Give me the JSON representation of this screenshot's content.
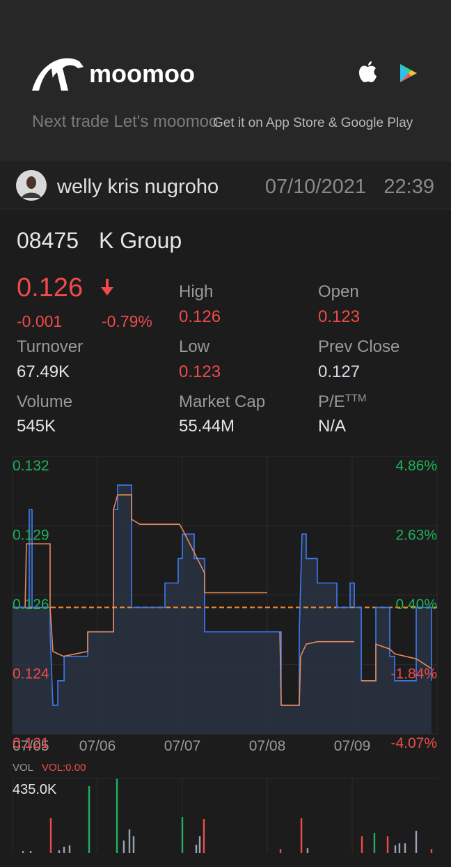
{
  "header": {
    "brand": "moomoo",
    "tagline": "Next trade Let's moomoo",
    "store": "Get it on App Store & Google Play"
  },
  "post": {
    "author": "welly kris nugroho",
    "date": "07/10/2021",
    "time": "22:39"
  },
  "stock": {
    "code": "08475",
    "name": "K Group",
    "price": "0.126",
    "change": "-0.001",
    "change_pct": "-0.79%",
    "columns": [
      [
        {
          "label": "Turnover",
          "value": "67.49K",
          "color": "#e6e6e6"
        },
        {
          "label": "Volume",
          "value": "545K",
          "color": "#e6e6e6"
        }
      ],
      [
        {
          "label": "High",
          "value": "0.126",
          "color": "#ef4b4b"
        },
        {
          "label": "Low",
          "value": "0.123",
          "color": "#ef4b4b"
        },
        {
          "label": "Market Cap",
          "value": "55.44M",
          "color": "#e6e6e6"
        }
      ],
      [
        {
          "label": "Open",
          "value": "0.123",
          "color": "#ef4b4b"
        },
        {
          "label": "Prev Close",
          "value": "0.127",
          "color": "#d6dce8"
        },
        {
          "label": "P/E",
          "sup": "TTM",
          "value": "N/A",
          "color": "#e6e6e6"
        }
      ]
    ]
  },
  "chart_data": [
    {
      "type": "line",
      "xlim": [
        0,
        5
      ],
      "xticks": [
        {
          "value": 0,
          "label": "07/05"
        },
        {
          "value": 1,
          "label": "07/06"
        },
        {
          "value": 2,
          "label": "07/07"
        },
        {
          "value": 3,
          "label": "07/08"
        },
        {
          "value": 4,
          "label": "07/09"
        }
      ],
      "ylim": [
        0.12183,
        0.13317
      ],
      "yticks": [
        0.132,
        0.129,
        0.126,
        0.124,
        0.121
      ],
      "y2lim": [
        -4.07,
        4.86
      ],
      "y2ticks": [
        {
          "value": 4.86,
          "label": "4.86%"
        },
        {
          "value": 2.63,
          "label": "2.63%"
        },
        {
          "value": 0.4,
          "label": "0.40%"
        },
        {
          "value": -1.84,
          "label": "-1.84%"
        },
        {
          "value": -4.07,
          "label": "-4.07%"
        }
      ],
      "reference_line": 0.127,
      "grid": true,
      "series": [
        {
          "color": "#3d7bf2",
          "fill": true,
          "x": [
            0,
            0.197,
            0.197,
            0.23,
            0.23,
            0.443,
            0.443,
            0.475,
            0.533,
            0.533,
            0.607,
            0.607,
            0.885,
            0.885,
            1.189,
            1.189,
            1.238,
            1.238,
            1.402,
            1.402,
            1.795,
            1.795,
            1.951,
            1.951,
            2.0,
            2.0,
            2.139,
            2.139,
            2.262,
            2.262,
            3.164,
            3.164,
            3.377,
            3.377,
            3.41,
            3.459,
            3.459,
            3.59,
            3.59,
            3.82,
            3.82,
            3.975,
            3.975,
            4.025,
            4.025,
            4.107,
            4.107,
            4.279,
            4.279,
            4.443,
            4.443,
            4.5,
            4.5,
            4.754,
            4.754,
            4.934,
            4.934
          ],
          "values": [
            0.127,
            0.127,
            0.131,
            0.131,
            0.127,
            0.127,
            0.126,
            0.123,
            0.123,
            0.124,
            0.124,
            0.125,
            0.125,
            0.126,
            0.126,
            0.131,
            0.131,
            0.132,
            0.132,
            0.127,
            0.127,
            0.128,
            0.128,
            0.129,
            0.129,
            0.13,
            0.13,
            0.129,
            0.129,
            0.126,
            0.126,
            0.123,
            0.123,
            0.126,
            0.13,
            0.13,
            0.129,
            0.129,
            0.128,
            0.128,
            0.127,
            0.127,
            0.128,
            0.128,
            0.127,
            0.127,
            0.124,
            0.124,
            0.127,
            0.127,
            0.125,
            0.125,
            0.124,
            0.124,
            0.127,
            0.127,
            0.124
          ]
        },
        {
          "color": "#e8895a",
          "fill": false,
          "x": [
            0.148,
            0.164,
            0.443,
            0.443,
            0.475,
            0.6,
            0.885,
            0.885,
            1.189,
            1.189,
            1.238,
            1.402,
            1.402,
            1.5,
            1.967,
            2.0,
            2.262,
            2.262,
            3.0,
            null,
            3.148,
            3.164,
            3.377,
            3.393,
            3.459,
            3.59,
            3.975,
            4.025,
            null,
            4.107,
            4.279,
            4.279,
            4.443,
            4.5,
            4.754,
            4.934
          ],
          "values": [
            0.127,
            0.1296,
            0.1296,
            0.127,
            0.1252,
            0.125,
            0.1252,
            0.126,
            0.126,
            0.131,
            0.1316,
            0.1316,
            0.1306,
            0.1304,
            0.1304,
            0.1302,
            0.1284,
            0.1276,
            0.1276,
            null,
            0.126,
            0.123,
            0.123,
            0.125,
            0.1255,
            0.1256,
            0.1256,
            0.1256,
            null,
            0.124,
            0.124,
            0.1255,
            0.1253,
            0.1251,
            0.1249,
            0.1245
          ]
        }
      ]
    },
    {
      "type": "bar",
      "title": "VOL",
      "subtitle": "VOL:0.00",
      "xlim": [
        0,
        5
      ],
      "xticks": [
        0,
        1,
        2,
        3,
        4
      ],
      "ylim": [
        0,
        435000
      ],
      "yticks": [
        {
          "value": 435000,
          "label": "435.0K"
        }
      ],
      "x": [
        0.123,
        0.213,
        0.451,
        0.549,
        0.607,
        0.672,
        0.902,
        1.23,
        1.311,
        1.377,
        1.426,
        2.0,
        2.164,
        2.205,
        2.254,
        3.156,
        3.402,
        3.475,
        4.115,
        4.262,
        4.418,
        4.508,
        4.557,
        4.623,
        4.754,
        4.934
      ],
      "values": [
        12000,
        12000,
        203000,
        16000,
        37000,
        45000,
        390000,
        435000,
        73000,
        138000,
        98000,
        211000,
        49000,
        98000,
        199000,
        24000,
        203000,
        28000,
        98000,
        118000,
        98000,
        45000,
        57000,
        57000,
        130000,
        24000
      ],
      "colors": [
        "#9aa3b5",
        "#9aa3b5",
        "#ef4b4b",
        "#9aa3b5",
        "#9aa3b5",
        "#9aa3b5",
        "#1fb15a",
        "#1fb15a",
        "#9aa3b5",
        "#9aa3b5",
        "#9aa3b5",
        "#1fb15a",
        "#9aa3b5",
        "#9aa3b5",
        "#ef4b4b",
        "#ef4b4b",
        "#ef4b4b",
        "#9aa3b5",
        "#ef4b4b",
        "#1fb15a",
        "#ef4b4b",
        "#9aa3b5",
        "#9aa3b5",
        "#9aa3b5",
        "#9aa3b5",
        "#ef4b4b"
      ]
    }
  ]
}
